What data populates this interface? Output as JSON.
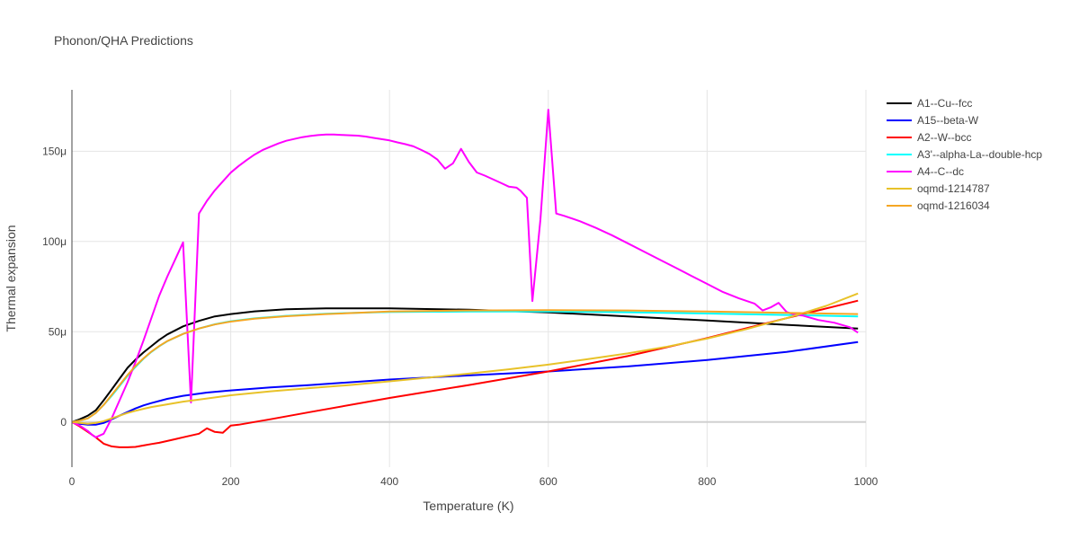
{
  "chart_data": {
    "type": "line",
    "title": "Phonon/QHA Predictions",
    "xlabel": "Temperature (K)",
    "ylabel": "Thermal expansion",
    "xlim": [
      0,
      1000
    ],
    "ylim": [
      -2.5e-05,
      0.000184
    ],
    "x_ticks": [
      0,
      200,
      400,
      600,
      800,
      1000
    ],
    "x_tick_labels": [
      "0",
      "200",
      "400",
      "600",
      "800",
      "1000"
    ],
    "y_ticks": [
      0,
      5e-05,
      0.0001,
      0.00015
    ],
    "y_tick_labels": [
      "0",
      "50μ",
      "100μ",
      "150μ"
    ],
    "grid": true,
    "legend_position": "top-right",
    "series": [
      {
        "name": "A1--Cu--fcc",
        "color": "#000000",
        "x": [
          0,
          10,
          20,
          30,
          40,
          50,
          60,
          70,
          80,
          90,
          100,
          110,
          120,
          140,
          160,
          180,
          200,
          230,
          270,
          320,
          400,
          500,
          600,
          700,
          800,
          900,
          990
        ],
        "y": [
          0,
          1.5e-06,
          3.5e-06,
          6.5e-06,
          1.2e-05,
          1.8e-05,
          2.4e-05,
          3e-05,
          3.45e-05,
          3.85e-05,
          4.2e-05,
          4.55e-05,
          4.85e-05,
          5.3e-05,
          5.6e-05,
          5.85e-05,
          5.98e-05,
          6.13e-05,
          6.25e-05,
          6.3e-05,
          6.3e-05,
          6.22e-05,
          6.07e-05,
          5.85e-05,
          5.62e-05,
          5.38e-05,
          5.18e-05
        ]
      },
      {
        "name": "A15--beta-W",
        "color": "#0000ff",
        "x": [
          0,
          10,
          20,
          30,
          40,
          50,
          60,
          70,
          80,
          90,
          100,
          120,
          140,
          170,
          200,
          250,
          300,
          400,
          500,
          600,
          700,
          800,
          900,
          990
        ],
        "y": [
          0,
          -1e-06,
          -1.5e-06,
          -1.5e-06,
          -5e-07,
          1.5e-06,
          3.5e-06,
          5.5e-06,
          7.5e-06,
          9.2e-06,
          1.05e-05,
          1.28e-05,
          1.45e-05,
          1.63e-05,
          1.75e-05,
          1.92e-05,
          2.05e-05,
          2.35e-05,
          2.58e-05,
          2.8e-05,
          3.08e-05,
          3.43e-05,
          3.88e-05,
          4.43e-05
        ]
      },
      {
        "name": "A2--W--bcc",
        "color": "#ff0000",
        "x": [
          0,
          10,
          20,
          30,
          40,
          50,
          60,
          70,
          80,
          90,
          100,
          110,
          120,
          130,
          140,
          150,
          160,
          170,
          175,
          180,
          190,
          200,
          210,
          250,
          300,
          400,
          500,
          600,
          700,
          800,
          900,
          990
        ],
        "y": [
          0,
          -2.5e-06,
          -5.5e-06,
          -8.5e-06,
          -1.2e-05,
          -1.35e-05,
          -1.4e-05,
          -1.4e-05,
          -1.38e-05,
          -1.3e-05,
          -1.22e-05,
          -1.15e-05,
          -1.05e-05,
          -9.5e-06,
          -8.5e-06,
          -7.5e-06,
          -6.5e-06,
          -3.5e-06,
          -4.5e-06,
          -5.5e-06,
          -6e-06,
          -2e-06,
          -1.5e-06,
          1.5e-06,
          5.5e-06,
          1.33e-05,
          2.05e-05,
          2.8e-05,
          3.65e-05,
          4.65e-05,
          5.75e-05,
          6.72e-05
        ]
      },
      {
        "name": "A3'--alpha-La--double-hcp",
        "color": "#00ffff",
        "x": [
          0,
          10,
          20,
          30,
          40,
          50,
          60,
          70,
          80,
          90,
          100,
          110,
          120,
          140,
          160,
          180,
          200,
          230,
          270,
          320,
          400,
          500,
          600,
          700,
          800,
          900,
          990
        ],
        "y": [
          0,
          8e-07,
          2e-06,
          5e-06,
          9.5e-06,
          1.45e-05,
          2e-05,
          2.55e-05,
          3.05e-05,
          3.5e-05,
          3.88e-05,
          4.2e-05,
          4.47e-05,
          4.88e-05,
          5.18e-05,
          5.41e-05,
          5.58e-05,
          5.74e-05,
          5.88e-05,
          6e-05,
          6.1e-05,
          6.12e-05,
          6.12e-05,
          6.08e-05,
          6.01e-05,
          5.93e-05,
          5.85e-05
        ]
      },
      {
        "name": "A4--C--dc",
        "color": "#ff00ff",
        "x": [
          0,
          10,
          20,
          25,
          30,
          40,
          50,
          60,
          70,
          80,
          90,
          100,
          110,
          120,
          130,
          140,
          150,
          160,
          170,
          180,
          190,
          200,
          210,
          220,
          230,
          240,
          250,
          260,
          270,
          280,
          290,
          300,
          310,
          320,
          330,
          340,
          350,
          360,
          370,
          380,
          390,
          400,
          410,
          420,
          430,
          440,
          450,
          460,
          470,
          480,
          490,
          500,
          510,
          520,
          530,
          540,
          550,
          560,
          565,
          573,
          580,
          590,
          600,
          610,
          620,
          640,
          660,
          680,
          700,
          720,
          740,
          760,
          780,
          800,
          820,
          840,
          860,
          870,
          880,
          890,
          900,
          910,
          920,
          940,
          960,
          980,
          990
        ],
        "y": [
          0,
          -2e-06,
          -5e-06,
          -7e-06,
          -8.5e-06,
          -6.5e-06,
          2e-06,
          1.2e-05,
          2.2e-05,
          3.3e-05,
          4.5e-05,
          5.75e-05,
          7e-05,
          8.05e-05,
          9e-05,
          9.95e-05,
          1.08e-05,
          0.0001155,
          0.0001225,
          0.0001283,
          0.0001333,
          0.0001381,
          0.0001418,
          0.0001451,
          0.0001481,
          0.0001506,
          0.0001525,
          0.0001543,
          0.0001558,
          0.0001568,
          0.0001578,
          0.0001584,
          0.0001589,
          0.0001592,
          0.0001592,
          0.000159,
          0.0001588,
          0.0001586,
          0.0001581,
          0.0001574,
          0.0001567,
          0.000156,
          0.0001549,
          0.0001539,
          0.0001527,
          0.0001507,
          0.0001485,
          0.0001455,
          0.0001403,
          0.0001433,
          0.0001513,
          0.000144,
          0.0001382,
          0.0001365,
          0.0001345,
          0.0001325,
          0.0001304,
          0.0001298,
          0.0001281,
          0.0001242,
          6.7e-05,
          0.000112,
          0.000173,
          0.0001155,
          0.0001142,
          0.0001112,
          0.0001075,
          0.0001035,
          9.9e-05,
          9.45e-05,
          9e-05,
          8.55e-05,
          8.1e-05,
          7.65e-05,
          7.2e-05,
          6.85e-05,
          6.55e-05,
          6.18e-05,
          6.35e-05,
          6.6e-05,
          6.1e-05,
          5.95e-05,
          5.9e-05,
          5.65e-05,
          5.5e-05,
          5.25e-05,
          4.95e-05
        ]
      },
      {
        "name": "oqmd-1214787",
        "color": "#e8c229",
        "x": [
          0,
          10,
          20,
          30,
          40,
          50,
          60,
          70,
          80,
          90,
          100,
          120,
          140,
          170,
          200,
          250,
          300,
          350,
          400,
          450,
          500,
          550,
          600,
          650,
          700,
          750,
          800,
          850,
          900,
          950,
          990
        ],
        "y": [
          0,
          -5e-07,
          -1e-06,
          -5e-07,
          5e-07,
          2e-06,
          3.5e-06,
          5e-06,
          6.2e-06,
          7.3e-06,
          8.3e-06,
          9.8e-06,
          1.13e-05,
          1.3e-05,
          1.48e-05,
          1.7e-05,
          1.88e-05,
          2.05e-05,
          2.25e-05,
          2.46e-05,
          2.68e-05,
          2.92e-05,
          3.18e-05,
          3.48e-05,
          3.8e-05,
          4.18e-05,
          4.62e-05,
          5.15e-05,
          5.75e-05,
          6.43e-05,
          7.12e-05
        ]
      },
      {
        "name": "oqmd-1216034",
        "color": "#f5a623",
        "x": [
          0,
          10,
          20,
          30,
          40,
          50,
          60,
          70,
          80,
          90,
          100,
          110,
          120,
          140,
          160,
          180,
          200,
          230,
          270,
          320,
          400,
          500,
          600,
          700,
          800,
          900,
          990
        ],
        "y": [
          0,
          8e-07,
          2e-06,
          5e-06,
          9.5e-06,
          1.5e-05,
          2.05e-05,
          2.6e-05,
          3.1e-05,
          3.52e-05,
          3.9e-05,
          4.21e-05,
          4.48e-05,
          4.88e-05,
          5.18e-05,
          5.4e-05,
          5.56e-05,
          5.72e-05,
          5.86e-05,
          5.98e-05,
          6.12e-05,
          6.18e-05,
          6.2e-05,
          6.18e-05,
          6.12e-05,
          6.05e-05,
          5.98e-05
        ]
      }
    ]
  }
}
